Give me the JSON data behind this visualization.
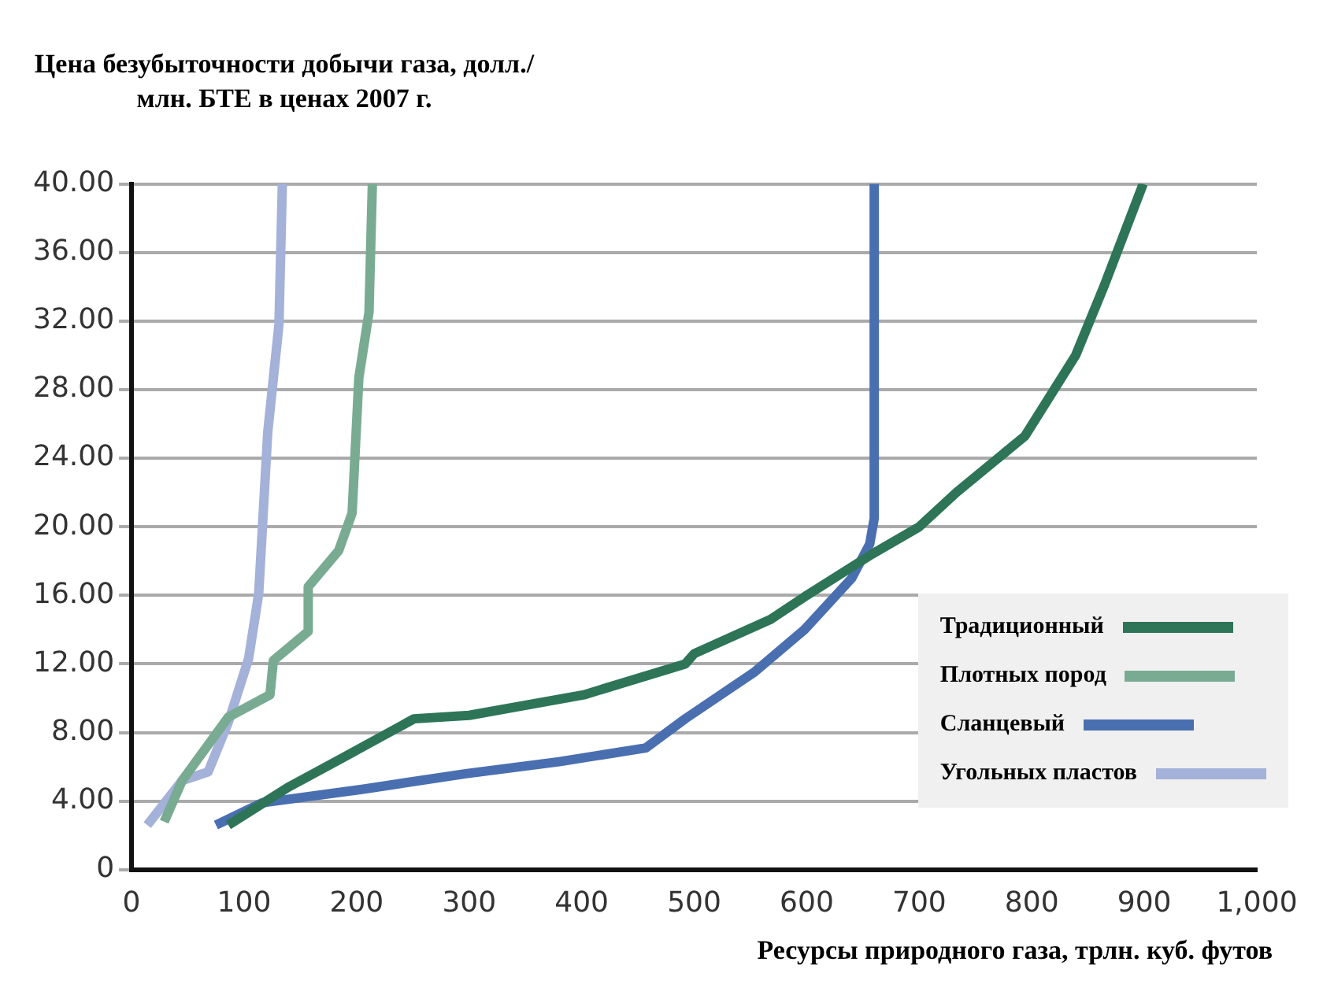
{
  "chart_data": {
    "type": "line",
    "ylabel": "Цена безубыточности добычи газа, долл./млн. БТЕ в ценах 2007 г.",
    "xlabel": "Ресурсы природного газа, трлн. куб. футов",
    "xlim": [
      0,
      1000
    ],
    "xticks": [
      0,
      100,
      200,
      300,
      400,
      500,
      600,
      700,
      800,
      900,
      {
        "value": 1000,
        "label": "1,000"
      }
    ],
    "ylim": [
      0,
      40
    ],
    "yticks": [
      {
        "value": 0,
        "label": "0"
      },
      {
        "value": 4,
        "label": "4.00"
      },
      {
        "value": 8,
        "label": "8.00"
      },
      {
        "value": 12,
        "label": "12.00"
      },
      {
        "value": 16,
        "label": "16.00"
      },
      {
        "value": 20,
        "label": "20.00"
      },
      {
        "value": 24,
        "label": "24.00"
      },
      {
        "value": 28,
        "label": "28.00"
      },
      {
        "value": 32,
        "label": "32.00"
      },
      {
        "value": 36,
        "label": "36.00"
      },
      {
        "value": 40,
        "label": "40.00"
      }
    ],
    "grid": "y",
    "legend": "bottom right",
    "marker": "none",
    "line_style": "solid",
    "series": [
      {
        "name": "Традиционный",
        "color": "#2e7558",
        "x": [
          86,
          139,
          184,
          251,
          300,
          402,
          492,
          500,
          568,
          600,
          658,
          700,
          733,
          794,
          839,
          864,
          899
        ],
        "values": [
          2.6,
          4.8,
          6.4,
          8.8,
          9.0,
          10.2,
          12,
          12.6,
          14.6,
          16,
          18.4,
          20,
          22,
          25.3,
          30,
          34,
          40
        ]
      },
      {
        "name": "Плотных пород",
        "color": "#79ab93",
        "x": [
          29,
          45,
          86,
          123,
          126,
          157,
          157,
          184,
          196,
          202,
          211,
          214
        ],
        "values": [
          2.8,
          5.2,
          8.9,
          10.2,
          12.2,
          13.9,
          16.5,
          18.6,
          20.8,
          28.7,
          32.5,
          40
        ]
      },
      {
        "name": "Сланцевый",
        "color": "#4a6fb0",
        "x": [
          75,
          116,
          206,
          297,
          380,
          457,
          492,
          553,
          598,
          640,
          656,
          660,
          660
        ],
        "values": [
          2.6,
          3.9,
          4.7,
          5.6,
          6.3,
          7.1,
          8.8,
          11.5,
          14,
          17,
          19,
          20.5,
          40
        ]
      },
      {
        "name": "Угольных пластов",
        "color": "#a4b1d8",
        "x": [
          14,
          45,
          68,
          86,
          104,
          113,
          117,
          121,
          131,
          134
        ],
        "values": [
          2.6,
          5.2,
          5.7,
          8.6,
          12.3,
          16.1,
          20.8,
          25.5,
          31.8,
          40
        ]
      }
    ]
  }
}
